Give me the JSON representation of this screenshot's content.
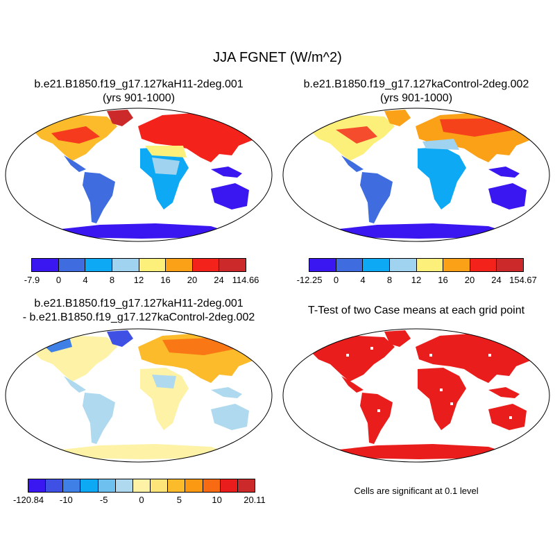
{
  "title": "JJA FGNET (W/m^2)",
  "panels": {
    "top_left": {
      "title_line1": "b.e21.B1850.f19_g17.127kaH11-2deg.001",
      "title_line2": "(yrs 901-1000)"
    },
    "top_right": {
      "title_line1": "b.e21.B1850.f19_g17.127kaControl-2deg.002",
      "title_line2": "(yrs 901-1000)"
    },
    "bottom_left": {
      "title_line1": "b.e21.B1850.f19_g17.127kaH11-2deg.001",
      "title_line2": "- b.e21.B1850.f19_g17.127kaControl-2deg.002"
    },
    "bottom_right": {
      "title_line1": "T-Test of two Case means at each grid point",
      "note": "Cells are significant at 0.1 level"
    }
  },
  "colorbars": {
    "top_left": {
      "colors": [
        "#3a17f0",
        "#3f6ddf",
        "#0ea9f4",
        "#9fd3ef",
        "#fdf07a",
        "#fba117",
        "#f3231c",
        "#cc2a2a"
      ],
      "labels": [
        "-7.9",
        "0",
        "4",
        "8",
        "12",
        "16",
        "20",
        "24",
        "114.66"
      ]
    },
    "top_right": {
      "colors": [
        "#3a17f0",
        "#3f6ddf",
        "#0ea9f4",
        "#9fd3ef",
        "#fdf07a",
        "#fba117",
        "#f3231c",
        "#cc2a2a"
      ],
      "labels": [
        "-12.25",
        "0",
        "4",
        "8",
        "12",
        "16",
        "20",
        "24",
        "154.67"
      ]
    },
    "bottom_left": {
      "colors": [
        "#3a17f0",
        "#3f50e5",
        "#3f80e6",
        "#0ea9f4",
        "#6ec0ef",
        "#aed9ef",
        "#fdf2a6",
        "#fde57a",
        "#fbbb2b",
        "#fb9a12",
        "#f96b12",
        "#ea1d1d",
        "#cc2a2a"
      ],
      "labels": [
        "-120.84",
        "-10",
        "-5",
        "0",
        "5",
        "10",
        "20.11"
      ]
    }
  }
}
